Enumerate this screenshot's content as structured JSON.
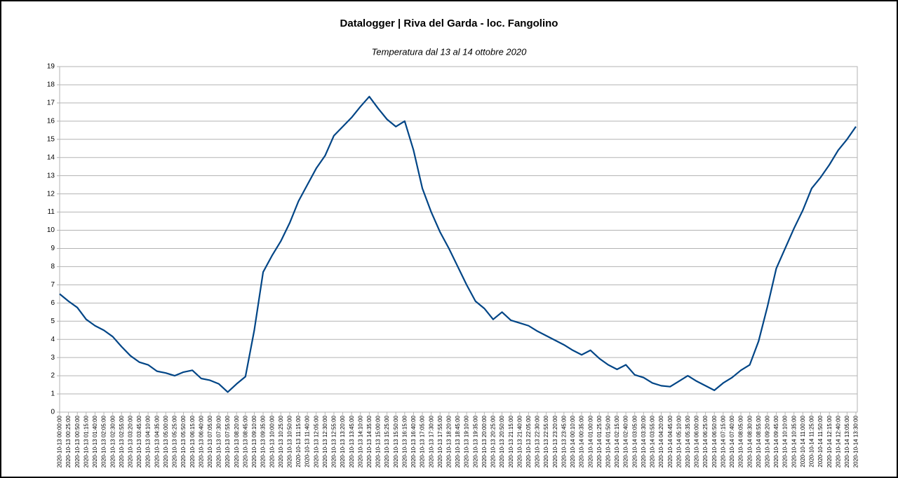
{
  "chart_data": {
    "type": "line",
    "title": "Datalogger |  Riva del Garda - loc. Fangolino",
    "subtitle": "Temperatura dal 13 al 14 ottobre 2020",
    "color": "#004586",
    "grid": true,
    "ylim": [
      0,
      19
    ],
    "yticks": [
      0,
      1,
      2,
      3,
      4,
      5,
      6,
      7,
      8,
      9,
      10,
      11,
      12,
      13,
      14,
      15,
      16,
      17,
      18,
      19
    ],
    "categories": [
      "2020-10-13 00:00:00",
      "2020-10-13 00:25:00",
      "2020-10-13 00:50:00",
      "2020-10-13 01:15:00",
      "2020-10-13 01:40:00",
      "2020-10-13 02:05:00",
      "2020-10-13 02:30:00",
      "2020-10-13 02:55:00",
      "2020-10-13 03:20:00",
      "2020-10-13 03:45:00",
      "2020-10-13 04:10:00",
      "2020-10-13 04:35:00",
      "2020-10-13 05:00:00",
      "2020-10-13 05:25:00",
      "2020-10-13 05:50:00",
      "2020-10-13 06:15:00",
      "2020-10-13 06:40:00",
      "2020-10-13 07:05:00",
      "2020-10-13 07:30:00",
      "2020-10-13 07:55:00",
      "2020-10-13 08:20:00",
      "2020-10-13 08:45:00",
      "2020-10-13 09:10:00",
      "2020-10-13 09:35:00",
      "2020-10-13 10:00:00",
      "2020-10-13 10:25:00",
      "2020-10-13 10:50:00",
      "2020-10-13 11:15:00",
      "2020-10-13 11:40:00",
      "2020-10-13 12:05:00",
      "2020-10-13 12:30:00",
      "2020-10-13 12:55:00",
      "2020-10-13 13:20:00",
      "2020-10-13 13:45:00",
      "2020-10-13 14:10:00",
      "2020-10-13 14:35:00",
      "2020-10-13 15:00:00",
      "2020-10-13 15:25:00",
      "2020-10-13 15:50:00",
      "2020-10-13 16:15:00",
      "2020-10-13 16:40:00",
      "2020-10-13 17:05:00",
      "2020-10-13 17:30:00",
      "2020-10-13 17:55:00",
      "2020-10-13 18:20:00",
      "2020-10-13 18:45:00",
      "2020-10-13 19:10:00",
      "2020-10-13 19:35:00",
      "2020-10-13 20:00:00",
      "2020-10-13 20:25:00",
      "2020-10-13 20:50:00",
      "2020-10-13 21:15:00",
      "2020-10-13 21:40:00",
      "2020-10-13 22:05:00",
      "2020-10-13 22:30:00",
      "2020-10-13 22:55:00",
      "2020-10-13 23:20:00",
      "2020-10-13 23:45:00",
      "2020-10-14 00:10:00",
      "2020-10-14 00:35:00",
      "2020-10-14 01:00:00",
      "2020-10-14 01:25:00",
      "2020-10-14 01:50:00",
      "2020-10-14 02:15:00",
      "2020-10-14 02:40:00",
      "2020-10-14 03:05:00",
      "2020-10-14 03:30:00",
      "2020-10-14 03:55:00",
      "2020-10-14 04:20:00",
      "2020-10-14 04:45:00",
      "2020-10-14 05:10:00",
      "2020-10-14 05:35:00",
      "2020-10-14 06:00:00",
      "2020-10-14 06:25:00",
      "2020-10-14 06:50:00",
      "2020-10-14 07:15:00",
      "2020-10-14 07:40:00",
      "2020-10-14 08:05:00",
      "2020-10-14 08:30:00",
      "2020-10-14 08:55:00",
      "2020-10-14 09:20:00",
      "2020-10-14 09:45:00",
      "2020-10-14 10:10:00",
      "2020-10-14 10:35:00",
      "2020-10-14 11:00:00",
      "2020-10-14 11:25:00",
      "2020-10-14 11:50:00",
      "2020-10-14 12:15:00",
      "2020-10-14 12:40:00",
      "2020-10-14 13:05:00",
      "2020-10-14 13:30:00"
    ],
    "values": [
      6.5,
      6.1,
      5.75,
      5.1,
      4.75,
      4.5,
      4.15,
      3.6,
      3.1,
      2.75,
      2.6,
      2.25,
      2.15,
      2.0,
      2.2,
      2.3,
      1.85,
      1.75,
      1.55,
      1.1,
      1.55,
      1.95,
      4.5,
      7.7,
      8.6,
      9.4,
      10.4,
      11.6,
      12.5,
      13.4,
      14.1,
      15.2,
      15.7,
      16.2,
      16.8,
      17.35,
      16.7,
      16.1,
      15.7,
      16.0,
      14.4,
      12.3,
      11.0,
      9.9,
      9.0,
      8.0,
      7.0,
      6.1,
      5.7,
      5.1,
      5.5,
      5.05,
      4.9,
      4.75,
      4.45,
      4.2,
      3.95,
      3.7,
      3.4,
      3.15,
      3.4,
      2.95,
      2.6,
      2.35,
      2.6,
      2.05,
      1.9,
      1.6,
      1.45,
      1.4,
      1.7,
      2.0,
      1.7,
      1.45,
      1.2,
      1.6,
      1.9,
      2.3,
      2.6,
      3.9,
      5.8,
      7.9,
      9.0,
      10.1,
      11.1,
      12.3,
      12.9,
      13.6,
      14.4,
      15.0,
      15.7
    ]
  }
}
